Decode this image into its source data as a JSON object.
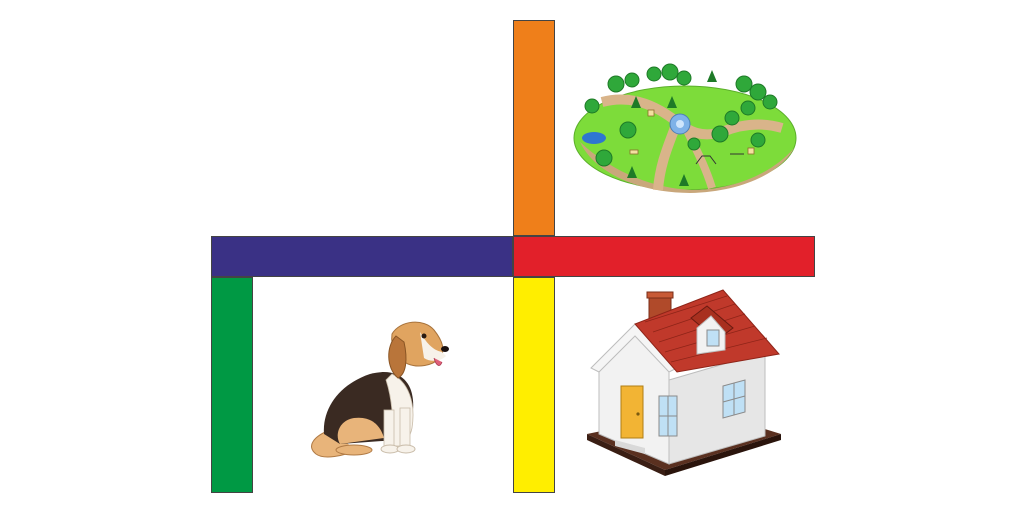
{
  "scene": {
    "bars": [
      {
        "name": "orange-vertical-bar",
        "color": "#EF7F1A"
      },
      {
        "name": "blue-horizontal-bar",
        "color": "#3A3185"
      },
      {
        "name": "red-horizontal-bar",
        "color": "#E2202A"
      },
      {
        "name": "green-vertical-bar",
        "color": "#009944"
      },
      {
        "name": "yellow-vertical-bar",
        "color": "#FFEE00"
      }
    ],
    "images": [
      {
        "name": "park-illustration",
        "icon": "park-icon"
      },
      {
        "name": "dog-illustration",
        "icon": "beagle-dog-icon"
      },
      {
        "name": "house-illustration",
        "icon": "house-icon"
      }
    ]
  }
}
